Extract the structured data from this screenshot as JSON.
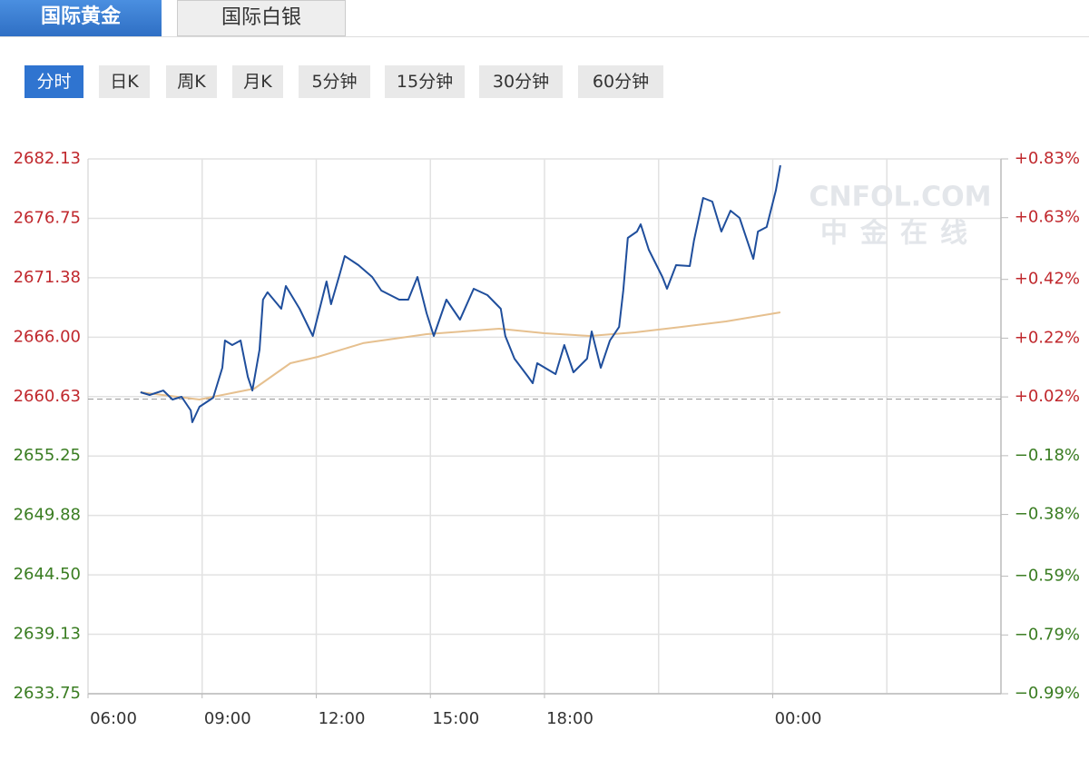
{
  "tabs": [
    "国际黄金",
    "国际白银"
  ],
  "periods": [
    "分时",
    "日K",
    "周K",
    "月K",
    "5分钟",
    "15分钟",
    "30分钟",
    "60分钟"
  ],
  "watermark": {
    "brand": "CNFOL.COM",
    "name": "中金在线"
  },
  "chart_data": {
    "type": "line",
    "xlim": [
      0,
      24
    ],
    "xticks": [
      {
        "value": 0,
        "label": "06:00"
      },
      {
        "value": 3,
        "label": "09:00"
      },
      {
        "value": 6,
        "label": "12:00"
      },
      {
        "value": 9,
        "label": "15:00"
      },
      {
        "value": 12,
        "label": "18:00"
      },
      {
        "value": 18,
        "label": "00:00"
      }
    ],
    "xgrid": [
      3,
      6,
      9,
      12,
      15,
      18,
      21
    ],
    "ylim": [
      2633.75,
      2682.13
    ],
    "yticks": [
      2682.13,
      2676.75,
      2671.38,
      {
        "value": 2666,
        "label": "2666.00"
      },
      2660.63,
      2655.25,
      2649.88,
      {
        "value": 2644.5,
        "label": "2644.50"
      },
      2639.13,
      2633.75
    ],
    "y2lim": [
      -0.99,
      0.83
    ],
    "y2ticks": [
      {
        "value": 0.83,
        "label": "+0.83%"
      },
      {
        "value": 0.63,
        "label": "+0.63%"
      },
      {
        "value": 0.42,
        "label": "+0.42%"
      },
      {
        "value": 0.22,
        "label": "+0.22%"
      },
      {
        "value": 0.02,
        "label": "+0.02%"
      },
      {
        "value": -0.18,
        "label": "−0.18%"
      },
      {
        "value": -0.38,
        "label": "−0.38%"
      },
      {
        "value": -0.59,
        "label": "−0.59%"
      },
      {
        "value": -0.79,
        "label": "−0.79%"
      },
      {
        "value": -0.99,
        "label": "−0.99%"
      }
    ],
    "baseline": 2660.4,
    "grid": true,
    "up_color": "#c0282d",
    "down_color": "#3a7d22",
    "series": [
      {
        "color": "#1f4e9c",
        "x": [
          1.38,
          1.62,
          1.98,
          2.22,
          2.46,
          2.7,
          2.74,
          2.93,
          3.29,
          3.53,
          3.6,
          3.79,
          4.01,
          4.2,
          4.32,
          4.51,
          4.6,
          4.72,
          5.08,
          5.2,
          5.56,
          5.91,
          6.15,
          6.27,
          6.39,
          6.63,
          6.75,
          7.11,
          7.47,
          7.71,
          8.18,
          8.42,
          8.66,
          8.9,
          9.09,
          9.42,
          9.78,
          10.14,
          10.5,
          10.85,
          10.97,
          11.21,
          11.57,
          11.69,
          11.81,
          12.29,
          12.52,
          12.76,
          13.12,
          13.24,
          13.48,
          13.72,
          13.96,
          14.07,
          14.19,
          14.43,
          14.53,
          14.74,
          15.1,
          15.22,
          15.46,
          15.82,
          15.93,
          16.17,
          16.41,
          16.65,
          16.89,
          17.13,
          17.49,
          17.61,
          17.84,
          18.08,
          18.2
        ],
        "values": [
          2661.02,
          2660.77,
          2661.18,
          2660.36,
          2660.61,
          2659.38,
          2658.31,
          2659.71,
          2660.53,
          2663.24,
          2665.7,
          2665.29,
          2665.7,
          2662.42,
          2661.18,
          2664.88,
          2669.4,
          2670.06,
          2668.58,
          2670.63,
          2668.58,
          2666.11,
          2669.4,
          2671.04,
          2668.99,
          2671.86,
          2673.34,
          2672.52,
          2671.45,
          2670.22,
          2669.4,
          2669.4,
          2671.45,
          2668.17,
          2666.11,
          2669.4,
          2667.59,
          2670.38,
          2669.81,
          2668.58,
          2666.11,
          2664.06,
          2662.42,
          2661.84,
          2663.65,
          2662.66,
          2665.29,
          2662.83,
          2664.06,
          2666.52,
          2663.24,
          2665.7,
          2666.93,
          2670.22,
          2674.98,
          2675.56,
          2676.22,
          2673.92,
          2671.45,
          2670.38,
          2672.52,
          2672.44,
          2674.74,
          2678.6,
          2678.27,
          2675.56,
          2677.45,
          2676.79,
          2673.09,
          2675.56,
          2675.97,
          2679.26,
          2681.55
        ]
      },
      {
        "color": "#e6c08f",
        "x": [
          1.38,
          2.93,
          4.37,
          5.32,
          6.04,
          7.23,
          8.9,
          10.81,
          12,
          13.19,
          14.38,
          15.58,
          16.77,
          18.2
        ],
        "values": [
          2661.02,
          2660.36,
          2661.35,
          2663.65,
          2664.22,
          2665.46,
          2666.28,
          2666.77,
          2666.36,
          2666.11,
          2666.44,
          2666.93,
          2667.43,
          2668.25
        ]
      }
    ]
  }
}
